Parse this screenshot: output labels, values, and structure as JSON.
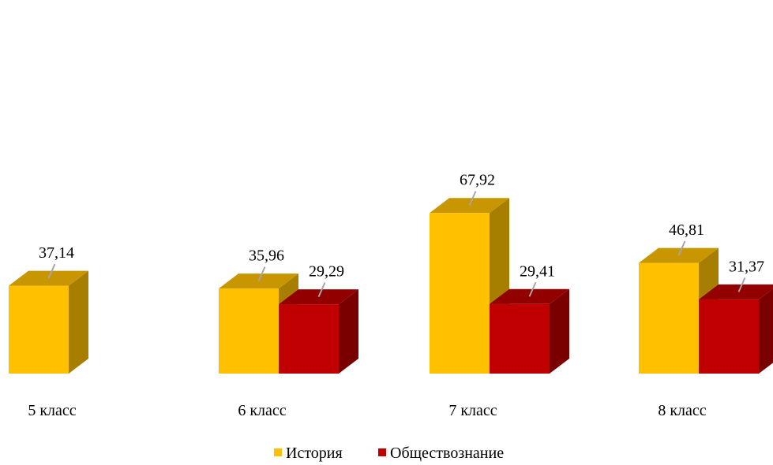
{
  "chart_data": {
    "type": "bar",
    "categories": [
      "5 класс",
      "6 класс",
      "7 класс",
      "8 класс"
    ],
    "series": [
      {
        "name": "История",
        "values": [
          37.14,
          35.96,
          67.92,
          46.81
        ],
        "labels": [
          "37,14",
          "35,96",
          "67,92",
          "46,81"
        ],
        "colors": {
          "front": "#FFC000",
          "top": "#C79600",
          "side": "#A87E00"
        }
      },
      {
        "name": "Обществознание",
        "values": [
          null,
          29.29,
          29.41,
          31.37
        ],
        "labels": [
          "",
          "29,29",
          "29,41",
          "31,37"
        ],
        "colors": {
          "front": "#C00000",
          "top": "#920000",
          "side": "#7A0000"
        }
      }
    ],
    "style": "3d-clustered-column",
    "legend_position": "bottom",
    "grid": false,
    "ylim": [
      0,
      80
    ]
  }
}
